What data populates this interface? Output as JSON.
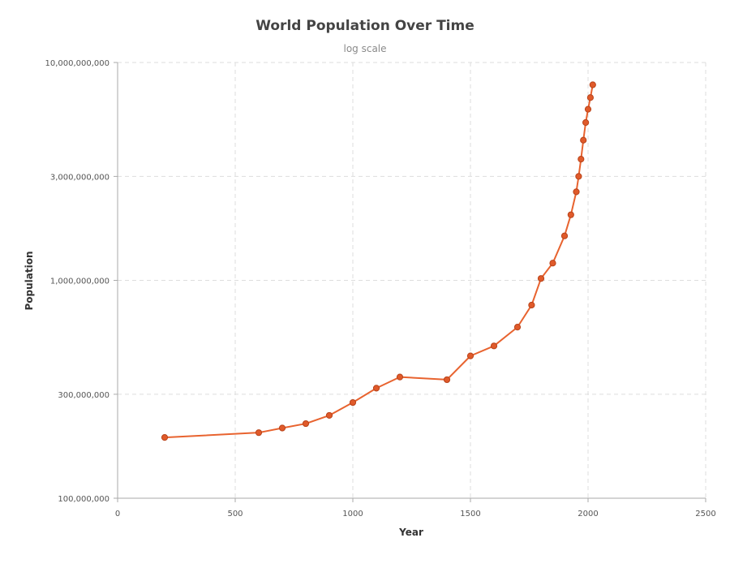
{
  "chart_data": {
    "type": "line",
    "title": "World Population Over Time",
    "subtitle": "log scale",
    "xlabel": "Year",
    "ylabel": "Population",
    "xlim": [
      0,
      2500
    ],
    "ylim": [
      100000000,
      10000000000
    ],
    "yscale": "log",
    "grid": true,
    "x_ticks": [
      "0",
      "500",
      "1000",
      "1500",
      "2000",
      "2500"
    ],
    "x_tick_values": [
      0,
      500,
      1000,
      1500,
      2000,
      2500
    ],
    "y_ticks": [
      "100,000,000",
      "300,000,000",
      "1,000,000,000",
      "3,000,000,000",
      "10,000,000,000"
    ],
    "y_tick_values": [
      100000000,
      300000000,
      1000000000,
      3000000000,
      10000000000
    ],
    "line_color": "#e8632f",
    "marker_fill": "#e05a2a",
    "marker_stroke": "#b8431a",
    "series": [
      {
        "x": [
          200,
          600,
          700,
          800,
          900,
          1000,
          1100,
          1200,
          1400,
          1500,
          1600,
          1700,
          1760,
          1800,
          1850,
          1900,
          1927,
          1950,
          1960,
          1970,
          1980,
          1990,
          2000,
          2010,
          2020
        ],
        "y": [
          190000000,
          200000000,
          210000000,
          220000000,
          240000000,
          275000000,
          320000000,
          360000000,
          350000000,
          450000000,
          500000000,
          610000000,
          770000000,
          1020000000,
          1200000000,
          1600000000,
          2000000000,
          2550000000,
          3000000000,
          3600000000,
          4400000000,
          5300000000,
          6100000000,
          6900000000,
          7900000000
        ]
      }
    ]
  }
}
